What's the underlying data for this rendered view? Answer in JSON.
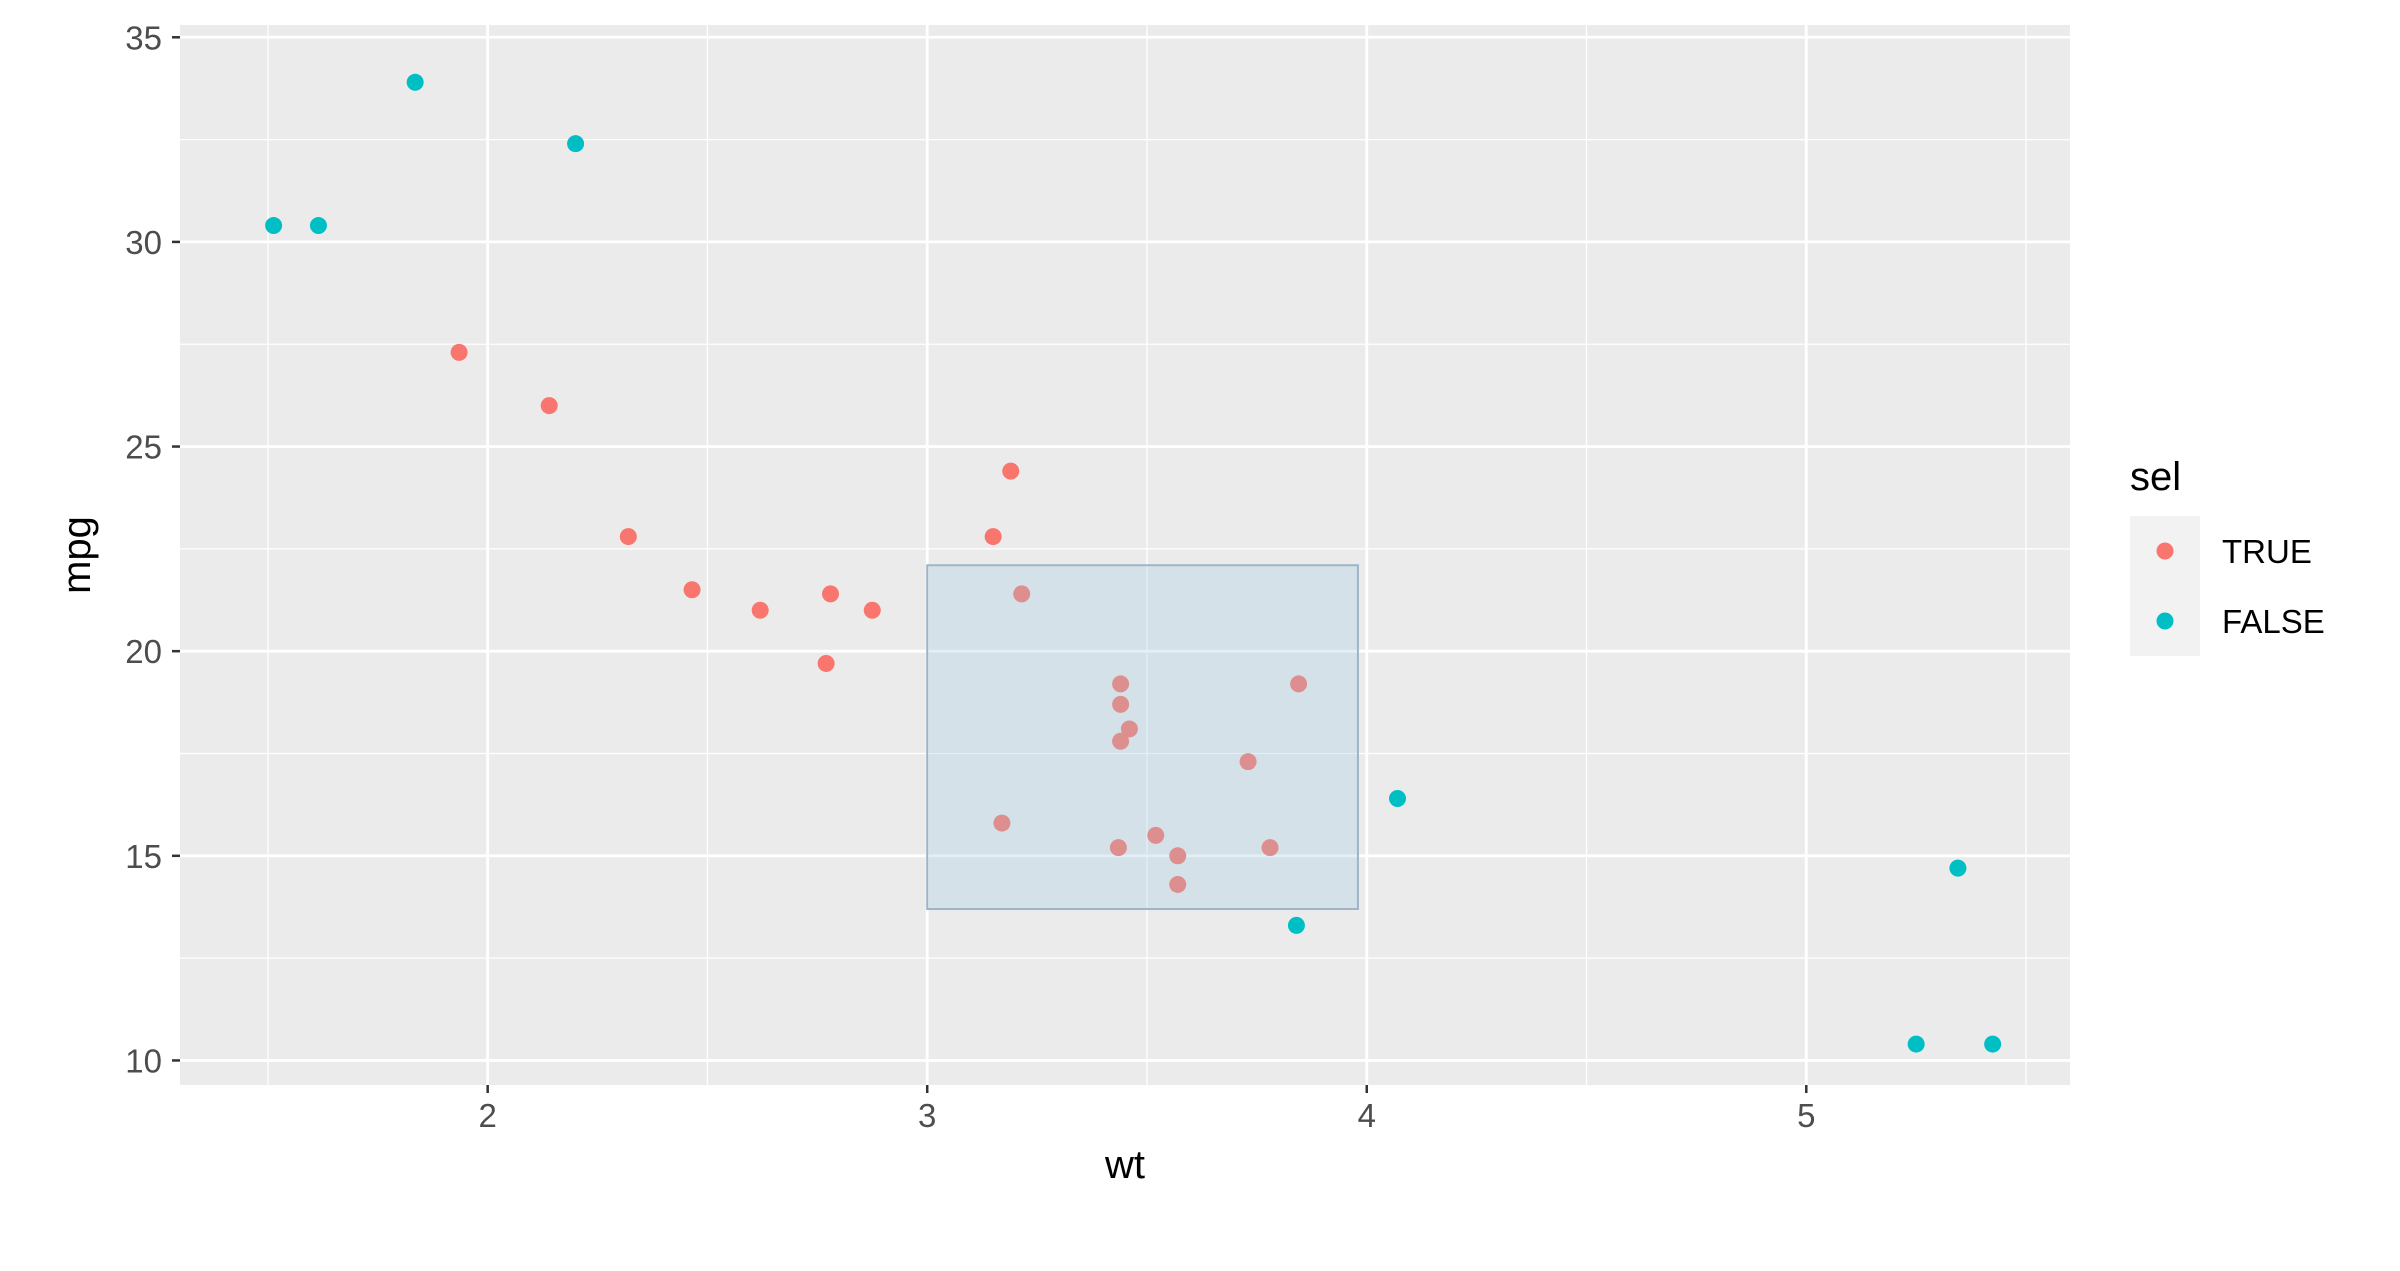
{
  "chart_data": {
    "type": "scatter",
    "xlabel": "wt",
    "ylabel": "mpg",
    "xlim": [
      1.3,
      5.6
    ],
    "ylim": [
      9.4,
      35.3
    ],
    "x_ticks": [
      2,
      3,
      4,
      5
    ],
    "y_ticks": [
      10,
      15,
      20,
      25,
      30,
      35
    ],
    "grid": true,
    "legend": {
      "title": "sel",
      "position": "right",
      "entries": [
        {
          "label": "TRUE",
          "color": "#F8766D"
        },
        {
          "label": "FALSE",
          "color": "#00BFC4"
        }
      ]
    },
    "brush": {
      "x": [
        3.0,
        3.98
      ],
      "y": [
        13.7,
        22.1
      ],
      "fill": "#9ECAE1",
      "stroke": "#9EB5C8"
    },
    "background": "#EBEBEB",
    "series": [
      {
        "name": "TRUE",
        "color": "#F8766D",
        "points": [
          {
            "x": 1.935,
            "y": 27.3
          },
          {
            "x": 2.14,
            "y": 26.0
          },
          {
            "x": 2.32,
            "y": 22.8
          },
          {
            "x": 2.465,
            "y": 21.5
          },
          {
            "x": 2.62,
            "y": 21.0
          },
          {
            "x": 2.77,
            "y": 19.7
          },
          {
            "x": 2.78,
            "y": 21.4
          },
          {
            "x": 2.875,
            "y": 21.0
          },
          {
            "x": 3.15,
            "y": 22.8
          },
          {
            "x": 3.19,
            "y": 24.4
          },
          {
            "x": 3.17,
            "y": 15.8
          },
          {
            "x": 3.215,
            "y": 21.4
          },
          {
            "x": 3.435,
            "y": 15.2
          },
          {
            "x": 3.44,
            "y": 19.2
          },
          {
            "x": 3.44,
            "y": 18.7
          },
          {
            "x": 3.44,
            "y": 17.8
          },
          {
            "x": 3.46,
            "y": 18.1
          },
          {
            "x": 3.52,
            "y": 15.5
          },
          {
            "x": 3.57,
            "y": 15.0
          },
          {
            "x": 3.57,
            "y": 14.3
          },
          {
            "x": 3.73,
            "y": 17.3
          },
          {
            "x": 3.78,
            "y": 15.2
          },
          {
            "x": 3.845,
            "y": 19.2
          }
        ]
      },
      {
        "name": "FALSE",
        "color": "#00BFC4",
        "points": [
          {
            "x": 1.513,
            "y": 30.4
          },
          {
            "x": 1.615,
            "y": 30.4
          },
          {
            "x": 1.835,
            "y": 33.9
          },
          {
            "x": 2.2,
            "y": 32.4
          },
          {
            "x": 3.84,
            "y": 13.3
          },
          {
            "x": 4.07,
            "y": 16.4
          },
          {
            "x": 5.25,
            "y": 10.4
          },
          {
            "x": 5.345,
            "y": 14.7
          },
          {
            "x": 5.424,
            "y": 10.4
          }
        ]
      }
    ]
  }
}
